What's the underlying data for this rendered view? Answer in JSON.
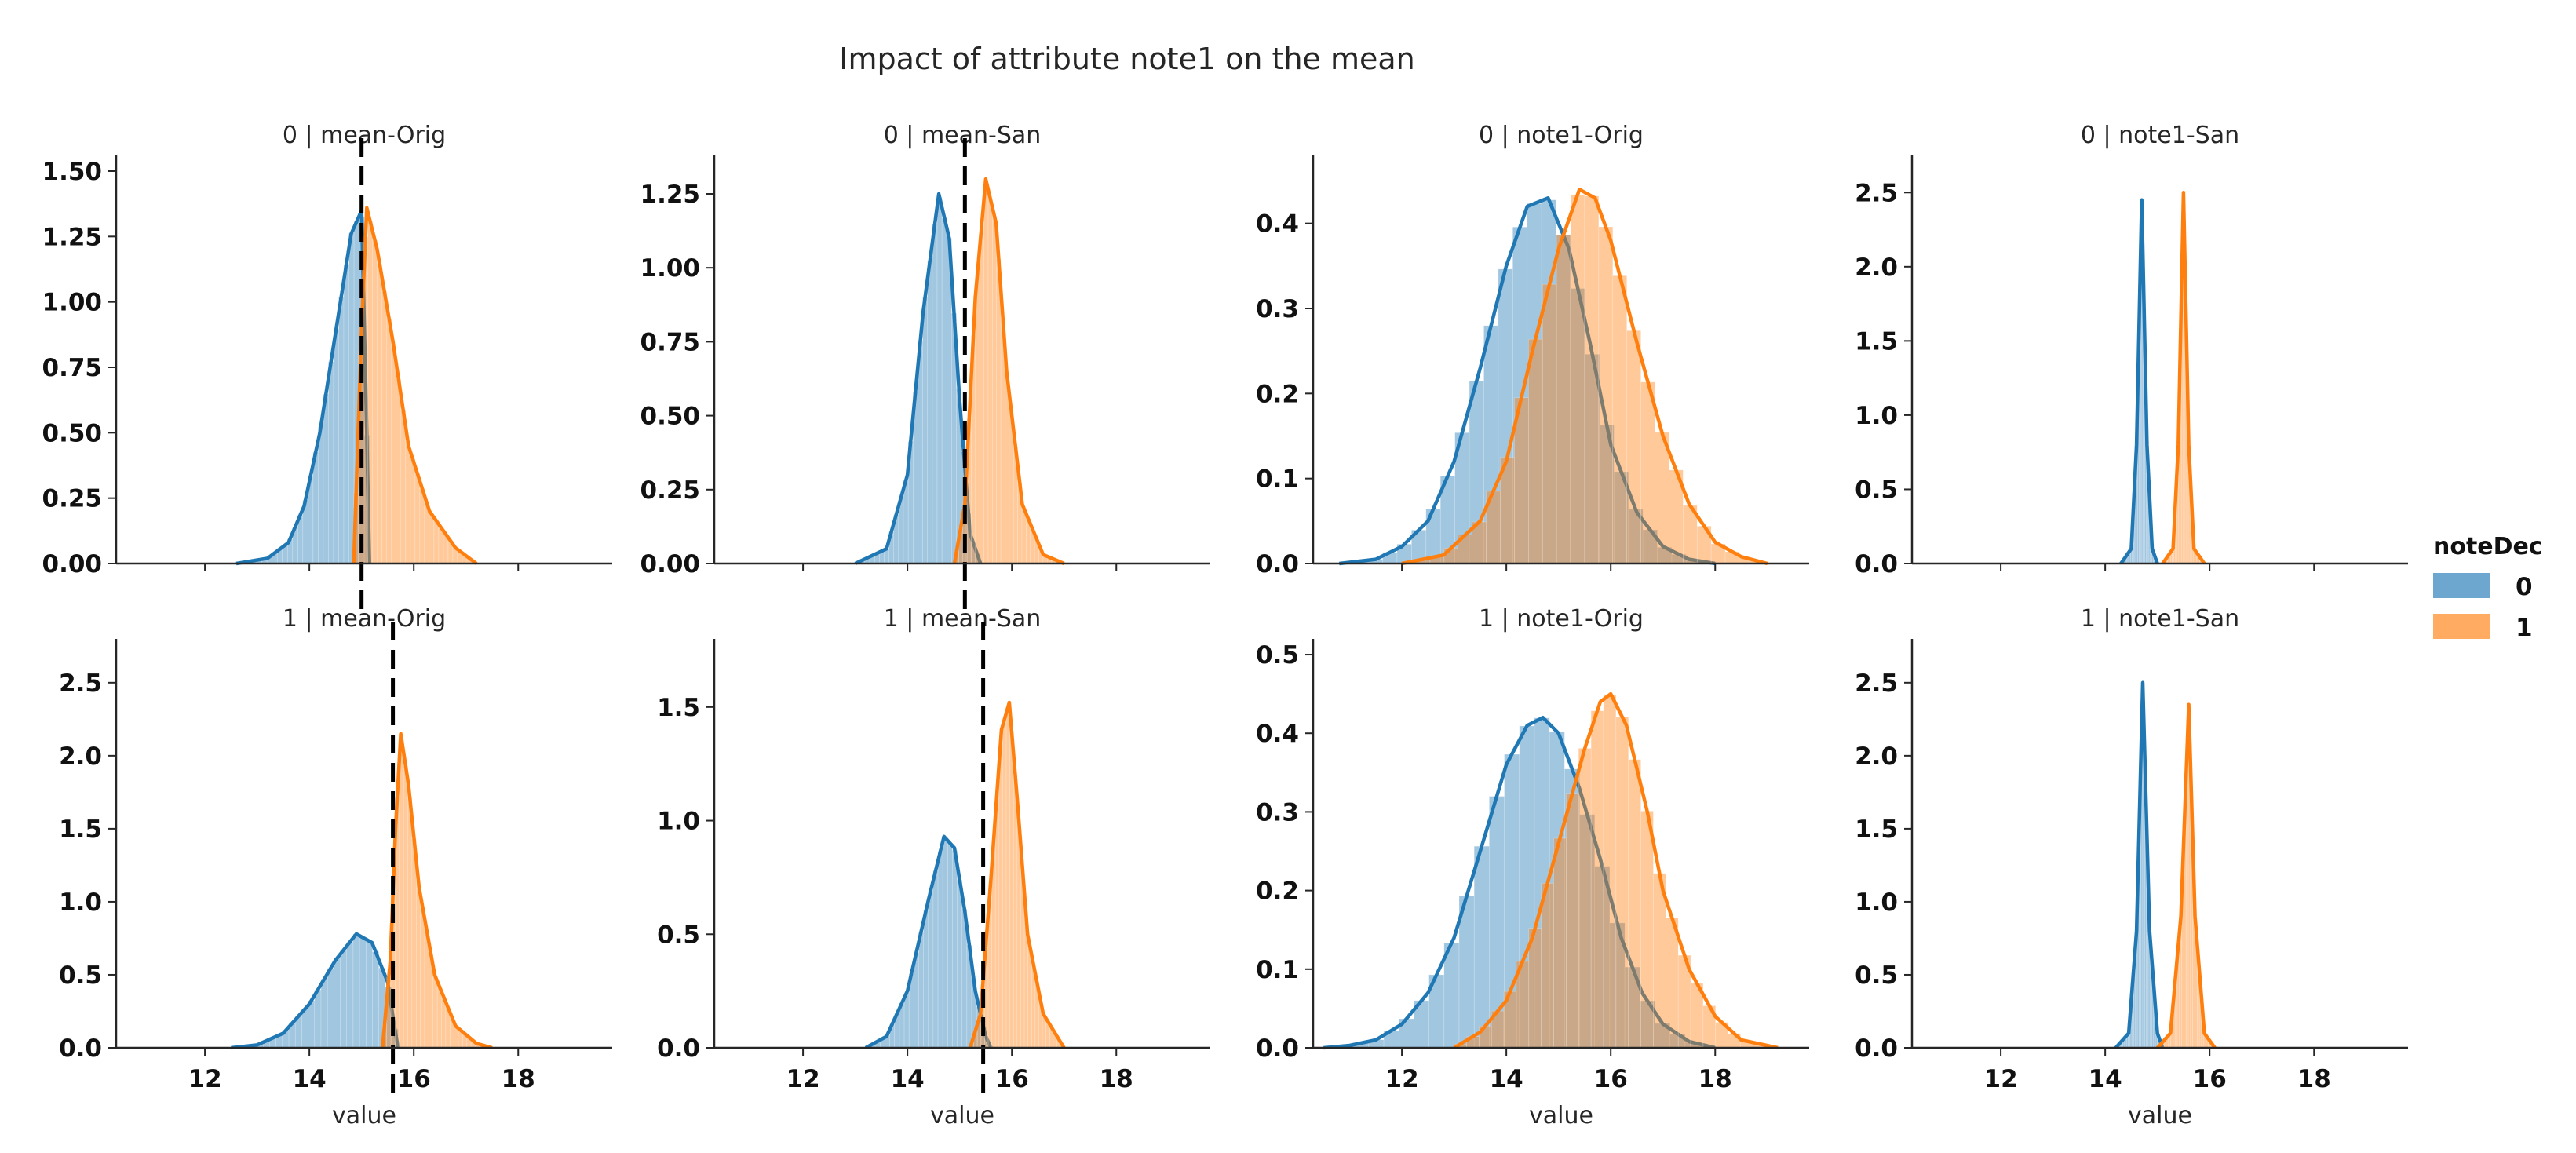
{
  "chart_data": {
    "type": "histogram-kde-grid",
    "suptitle": "Impact of attribute note1 on the mean",
    "xlabel": "value",
    "xlim": [
      10.3,
      19.8
    ],
    "xticks": [
      12,
      14,
      16,
      18
    ],
    "legend": {
      "title": "noteDec",
      "position": "right",
      "entries": [
        "0",
        "1"
      ]
    },
    "colors": {
      "0": "#1f77b4",
      "1": "#ff7f0e"
    },
    "panels": [
      {
        "title": "0 | mean-Orig",
        "ylim": [
          0,
          1.56
        ],
        "yticks": [
          "0.00",
          "0.25",
          "0.50",
          "0.75",
          "1.00",
          "1.25",
          "1.50"
        ],
        "series": [
          {
            "name": "0",
            "points": [
              [
                12.6,
                0
              ],
              [
                13.2,
                0.02
              ],
              [
                13.6,
                0.08
              ],
              [
                13.9,
                0.22
              ],
              [
                14.2,
                0.5
              ],
              [
                14.5,
                0.88
              ],
              [
                14.8,
                1.26
              ],
              [
                15.0,
                1.35
              ],
              [
                15.1,
                0.5
              ],
              [
                15.15,
                0
              ]
            ]
          },
          {
            "name": "1",
            "points": [
              [
                14.85,
                0
              ],
              [
                15.0,
                0.9
              ],
              [
                15.1,
                1.36
              ],
              [
                15.3,
                1.2
              ],
              [
                15.6,
                0.85
              ],
              [
                15.9,
                0.45
              ],
              [
                16.3,
                0.2
              ],
              [
                16.8,
                0.06
              ],
              [
                17.2,
                0
              ]
            ]
          }
        ],
        "vline": 15.0
      },
      {
        "title": "0 | mean-San",
        "ylim": [
          0,
          1.38
        ],
        "yticks": [
          "0.00",
          "0.25",
          "0.50",
          "0.75",
          "1.00",
          "1.25"
        ],
        "series": [
          {
            "name": "0",
            "points": [
              [
                13.0,
                0
              ],
              [
                13.6,
                0.05
              ],
              [
                14.0,
                0.3
              ],
              [
                14.3,
                0.85
              ],
              [
                14.6,
                1.25
              ],
              [
                14.8,
                1.1
              ],
              [
                15.0,
                0.55
              ],
              [
                15.2,
                0.1
              ],
              [
                15.4,
                0
              ]
            ]
          },
          {
            "name": "1",
            "points": [
              [
                14.9,
                0
              ],
              [
                15.1,
                0.2
              ],
              [
                15.3,
                0.9
              ],
              [
                15.5,
                1.3
              ],
              [
                15.7,
                1.15
              ],
              [
                15.9,
                0.65
              ],
              [
                16.2,
                0.2
              ],
              [
                16.6,
                0.03
              ],
              [
                17.0,
                0
              ]
            ]
          }
        ],
        "vline": 15.1
      },
      {
        "title": "0 | note1-Orig",
        "ylim": [
          0,
          0.48
        ],
        "yticks": [
          "0.0",
          "0.1",
          "0.2",
          "0.3",
          "0.4"
        ],
        "series": [
          {
            "name": "0",
            "points": [
              [
                10.8,
                0
              ],
              [
                11.5,
                0.005
              ],
              [
                12.0,
                0.02
              ],
              [
                12.5,
                0.05
              ],
              [
                13.0,
                0.12
              ],
              [
                13.5,
                0.23
              ],
              [
                14.0,
                0.35
              ],
              [
                14.4,
                0.42
              ],
              [
                14.8,
                0.43
              ],
              [
                15.2,
                0.37
              ],
              [
                15.6,
                0.26
              ],
              [
                16.0,
                0.14
              ],
              [
                16.5,
                0.06
              ],
              [
                17.0,
                0.02
              ],
              [
                17.5,
                0.005
              ],
              [
                18.0,
                0
              ]
            ]
          },
          {
            "name": "1",
            "points": [
              [
                12.0,
                0
              ],
              [
                12.8,
                0.01
              ],
              [
                13.5,
                0.05
              ],
              [
                14.0,
                0.12
              ],
              [
                14.5,
                0.25
              ],
              [
                15.0,
                0.37
              ],
              [
                15.4,
                0.44
              ],
              [
                15.7,
                0.43
              ],
              [
                16.0,
                0.38
              ],
              [
                16.5,
                0.26
              ],
              [
                17.0,
                0.15
              ],
              [
                17.5,
                0.07
              ],
              [
                18.0,
                0.025
              ],
              [
                18.5,
                0.008
              ],
              [
                19.0,
                0
              ]
            ]
          }
        ],
        "vline": null
      },
      {
        "title": "0 | note1-San",
        "ylim": [
          0,
          2.75
        ],
        "yticks": [
          "0.0",
          "0.5",
          "1.0",
          "1.5",
          "2.0",
          "2.5"
        ],
        "series": [
          {
            "name": "0",
            "points": [
              [
                14.3,
                0
              ],
              [
                14.5,
                0.1
              ],
              [
                14.6,
                0.8
              ],
              [
                14.7,
                2.45
              ],
              [
                14.8,
                0.8
              ],
              [
                14.9,
                0.1
              ],
              [
                15.0,
                0
              ]
            ]
          },
          {
            "name": "1",
            "points": [
              [
                15.1,
                0
              ],
              [
                15.3,
                0.1
              ],
              [
                15.4,
                0.8
              ],
              [
                15.5,
                2.5
              ],
              [
                15.6,
                0.8
              ],
              [
                15.7,
                0.1
              ],
              [
                15.9,
                0
              ]
            ]
          }
        ],
        "vline": null
      },
      {
        "title": "1 | mean-Orig",
        "ylim": [
          0,
          2.8
        ],
        "yticks": [
          "0.0",
          "0.5",
          "1.0",
          "1.5",
          "2.0",
          "2.5"
        ],
        "series": [
          {
            "name": "0",
            "points": [
              [
                12.5,
                0
              ],
              [
                13.0,
                0.02
              ],
              [
                13.5,
                0.1
              ],
              [
                14.0,
                0.3
              ],
              [
                14.5,
                0.6
              ],
              [
                14.9,
                0.78
              ],
              [
                15.2,
                0.72
              ],
              [
                15.5,
                0.45
              ],
              [
                15.65,
                0.1
              ],
              [
                15.7,
                0
              ]
            ]
          },
          {
            "name": "1",
            "points": [
              [
                15.4,
                0
              ],
              [
                15.55,
                0.6
              ],
              [
                15.65,
                1.5
              ],
              [
                15.75,
                2.15
              ],
              [
                15.9,
                1.8
              ],
              [
                16.1,
                1.1
              ],
              [
                16.4,
                0.5
              ],
              [
                16.8,
                0.15
              ],
              [
                17.2,
                0.03
              ],
              [
                17.5,
                0
              ]
            ]
          }
        ],
        "vline": 15.6
      },
      {
        "title": "1 | mean-San",
        "ylim": [
          0,
          1.8
        ],
        "yticks": [
          "0.0",
          "0.5",
          "1.0",
          "1.5"
        ],
        "series": [
          {
            "name": "0",
            "points": [
              [
                13.2,
                0
              ],
              [
                13.6,
                0.05
              ],
              [
                14.0,
                0.25
              ],
              [
                14.4,
                0.65
              ],
              [
                14.7,
                0.93
              ],
              [
                14.9,
                0.88
              ],
              [
                15.1,
                0.6
              ],
              [
                15.3,
                0.25
              ],
              [
                15.5,
                0.05
              ],
              [
                15.6,
                0
              ]
            ]
          },
          {
            "name": "1",
            "points": [
              [
                15.2,
                0
              ],
              [
                15.4,
                0.15
              ],
              [
                15.6,
                0.75
              ],
              [
                15.8,
                1.4
              ],
              [
                15.95,
                1.52
              ],
              [
                16.1,
                1.1
              ],
              [
                16.3,
                0.5
              ],
              [
                16.6,
                0.15
              ],
              [
                17.0,
                0
              ]
            ]
          }
        ],
        "vline": 15.45
      },
      {
        "title": "1 | note1-Orig",
        "ylim": [
          0,
          0.52
        ],
        "yticks": [
          "0.0",
          "0.1",
          "0.2",
          "0.3",
          "0.4",
          "0.5"
        ],
        "series": [
          {
            "name": "0",
            "points": [
              [
                10.5,
                0
              ],
              [
                11.0,
                0.003
              ],
              [
                11.5,
                0.01
              ],
              [
                12.0,
                0.03
              ],
              [
                12.5,
                0.07
              ],
              [
                13.0,
                0.14
              ],
              [
                13.5,
                0.25
              ],
              [
                14.0,
                0.36
              ],
              [
                14.4,
                0.41
              ],
              [
                14.7,
                0.42
              ],
              [
                15.0,
                0.4
              ],
              [
                15.4,
                0.33
              ],
              [
                15.8,
                0.24
              ],
              [
                16.2,
                0.14
              ],
              [
                16.6,
                0.07
              ],
              [
                17.0,
                0.03
              ],
              [
                17.5,
                0.008
              ],
              [
                18.0,
                0
              ]
            ]
          },
          {
            "name": "1",
            "points": [
              [
                13.0,
                0
              ],
              [
                13.5,
                0.02
              ],
              [
                14.0,
                0.06
              ],
              [
                14.5,
                0.14
              ],
              [
                15.0,
                0.26
              ],
              [
                15.5,
                0.38
              ],
              [
                15.8,
                0.44
              ],
              [
                16.0,
                0.45
              ],
              [
                16.3,
                0.41
              ],
              [
                16.7,
                0.3
              ],
              [
                17.0,
                0.2
              ],
              [
                17.5,
                0.1
              ],
              [
                18.0,
                0.04
              ],
              [
                18.5,
                0.01
              ],
              [
                19.2,
                0
              ]
            ]
          }
        ],
        "vline": null
      },
      {
        "title": "1 | note1-San",
        "ylim": [
          0,
          2.8
        ],
        "yticks": [
          "0.0",
          "0.5",
          "1.0",
          "1.5",
          "2.0",
          "2.5"
        ],
        "series": [
          {
            "name": "0",
            "points": [
              [
                14.2,
                0
              ],
              [
                14.45,
                0.1
              ],
              [
                14.6,
                0.8
              ],
              [
                14.72,
                2.5
              ],
              [
                14.85,
                0.8
              ],
              [
                15.0,
                0.1
              ],
              [
                15.1,
                0
              ]
            ]
          },
          {
            "name": "1",
            "points": [
              [
                15.0,
                0
              ],
              [
                15.25,
                0.1
              ],
              [
                15.45,
                0.9
              ],
              [
                15.6,
                2.35
              ],
              [
                15.72,
                0.9
              ],
              [
                15.9,
                0.1
              ],
              [
                16.1,
                0
              ]
            ]
          }
        ],
        "vline": null
      }
    ]
  }
}
